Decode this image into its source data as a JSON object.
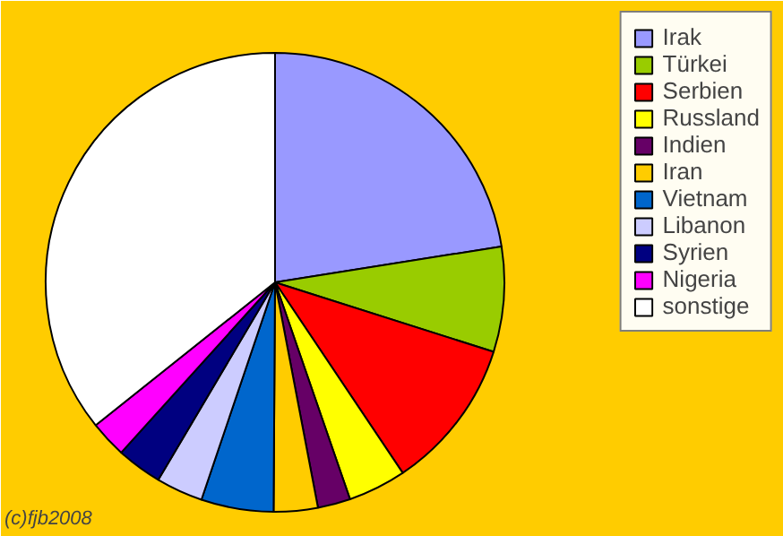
{
  "chart_data": {
    "type": "pie",
    "categories": [
      "Irak",
      "Türkei",
      "Serbien",
      "Russland",
      "Indien",
      "Iran",
      "Vietnam",
      "Libanon",
      "Syrien",
      "Nigeria",
      "sonstige"
    ],
    "values": [
      22.5,
      7.4,
      10.7,
      4.1,
      2.3,
      3.1,
      5.1,
      3.3,
      3.2,
      2.6,
      35.7
    ],
    "colors": [
      "#9999ff",
      "#99cc00",
      "#ff0000",
      "#ffff00",
      "#660066",
      "#ffcc00",
      "#0066cc",
      "#ccccff",
      "#000080",
      "#ff00ff",
      "#ffffff"
    ],
    "legend": "right",
    "annotations": [
      "(c)fjb2008"
    ]
  }
}
